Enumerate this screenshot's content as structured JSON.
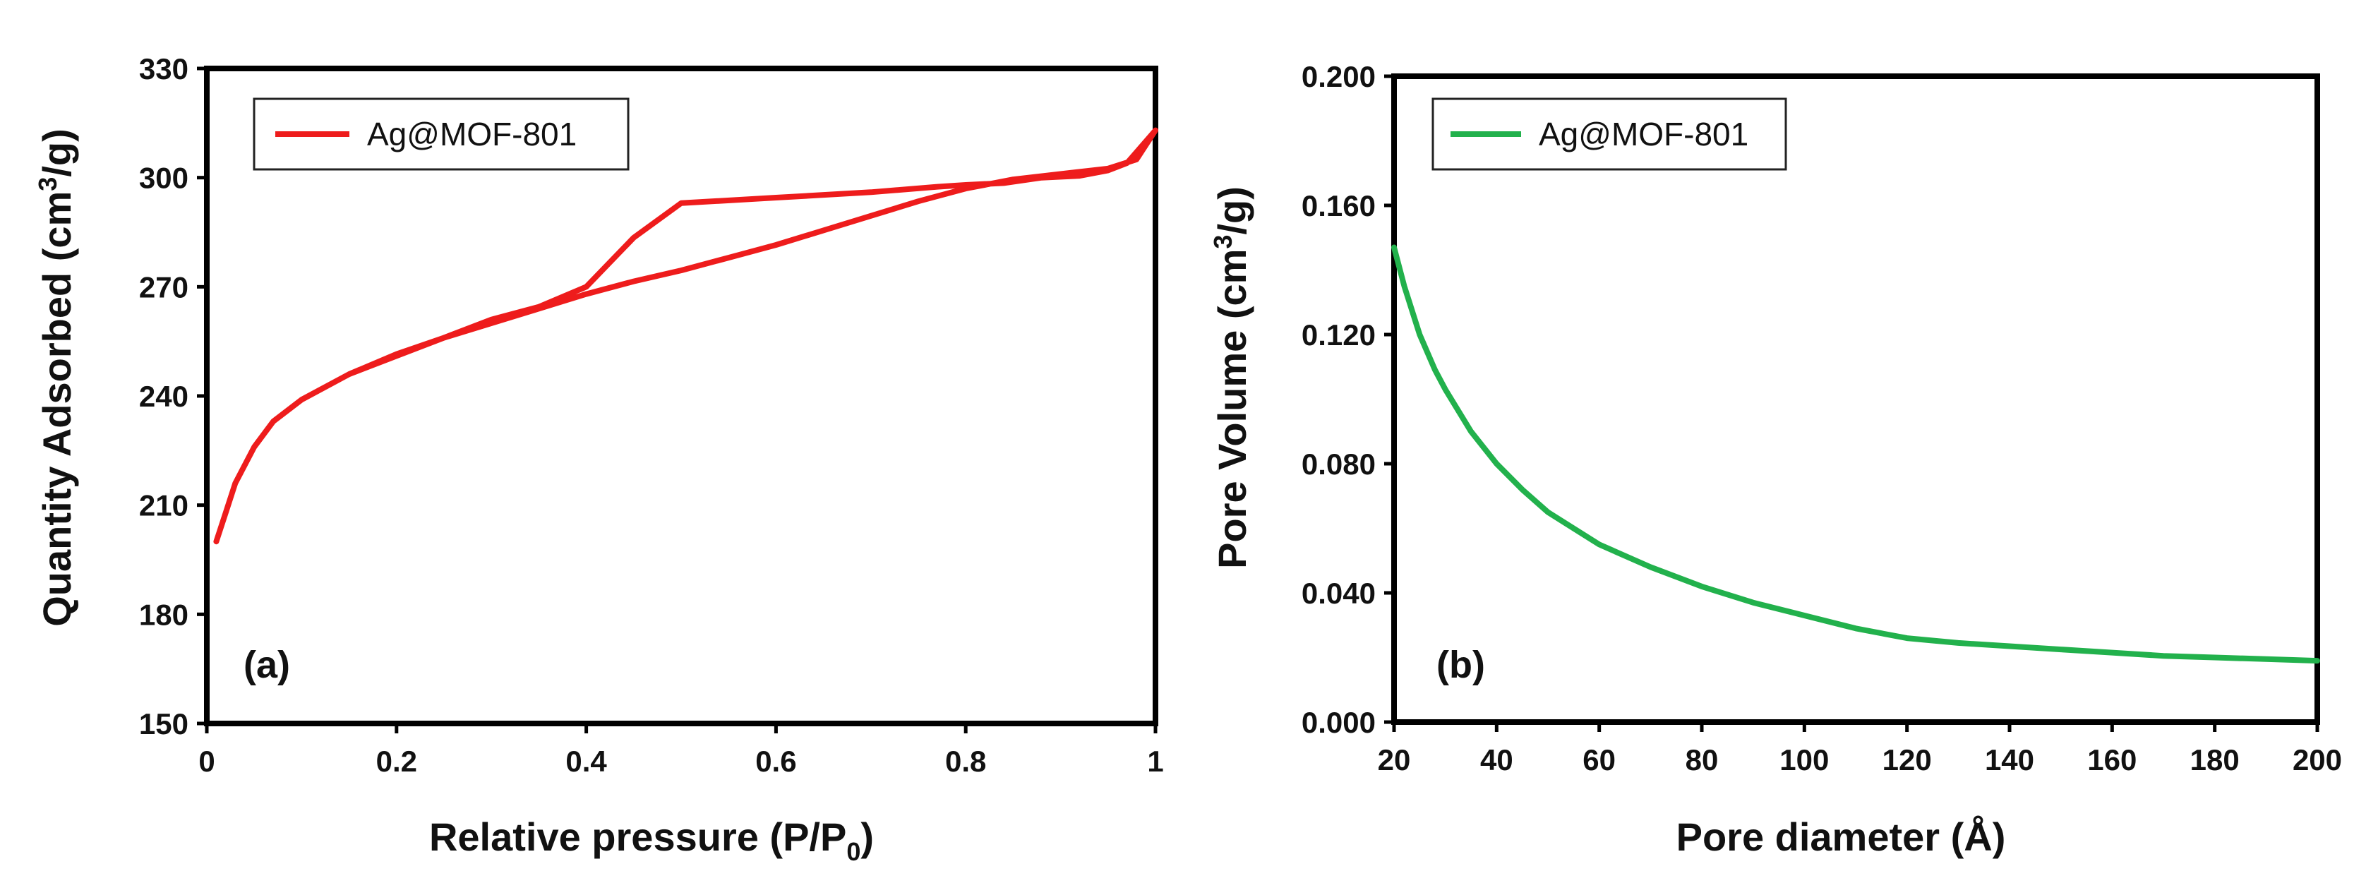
{
  "chart_data": [
    {
      "type": "line",
      "panel_label": "(a)",
      "xlabel": "Relative pressure (P/P",
      "xlabel_sub": "0",
      "xlabel_end": ")",
      "ylabel": "Quantity Adsorbed (cm",
      "ylabel_sup": "3",
      "ylabel_end": "/g)",
      "xlim": [
        0,
        1
      ],
      "ylim": [
        150,
        330
      ],
      "xticks": [
        0,
        0.2,
        0.4,
        0.6,
        0.8,
        1
      ],
      "xtick_labels": [
        "0",
        "0.2",
        "0.4",
        "0.6",
        "0.8",
        "1"
      ],
      "yticks": [
        150,
        180,
        210,
        240,
        270,
        300,
        330
      ],
      "ytick_labels": [
        "150",
        "180",
        "210",
        "240",
        "270",
        "300",
        "330"
      ],
      "legend": [
        "Ag@MOF-801"
      ],
      "series": [
        {
          "name": "Ag@MOF-801",
          "color": "#ee1c1c",
          "x": [
            0.01,
            0.02,
            0.03,
            0.05,
            0.07,
            0.1,
            0.15,
            0.2,
            0.25,
            0.3,
            0.35,
            0.4,
            0.45,
            0.5,
            0.55,
            0.6,
            0.65,
            0.7,
            0.75,
            0.8,
            0.85,
            0.9,
            0.95,
            0.98,
            1.0,
            0.97,
            0.95,
            0.92,
            0.88,
            0.84,
            0.8,
            0.77,
            0.7,
            0.6,
            0.5,
            0.45,
            0.4,
            0.35,
            0.3,
            0.25,
            0.2,
            0.15
          ],
          "y": [
            200,
            208,
            216,
            226,
            233,
            239,
            246,
            251,
            256,
            260,
            264,
            268,
            271.5,
            274.5,
            278,
            281.5,
            285.5,
            289.5,
            293.5,
            297,
            299.5,
            301,
            302.5,
            305,
            313,
            304,
            302,
            300.5,
            300,
            298.5,
            298,
            297.5,
            296,
            294.5,
            293,
            283.5,
            270,
            264.5,
            261,
            256,
            251.5,
            246
          ]
        }
      ]
    },
    {
      "type": "line",
      "panel_label": "(b)",
      "xlabel": "Pore diameter (Å)",
      "ylabel": "Pore Volume (cm",
      "ylabel_sup": "3",
      "ylabel_end": "/g)",
      "xlim": [
        20,
        200
      ],
      "ylim": [
        0,
        0.2
      ],
      "xticks": [
        20,
        40,
        60,
        80,
        100,
        120,
        140,
        160,
        180,
        200
      ],
      "xtick_labels": [
        "20",
        "40",
        "60",
        "80",
        "100",
        "120",
        "140",
        "160",
        "180",
        "200"
      ],
      "yticks": [
        0,
        0.04,
        0.08,
        0.12,
        0.16,
        0.2
      ],
      "ytick_labels": [
        "0.000",
        "0.040",
        "0.080",
        "0.120",
        "0.160",
        "0.200"
      ],
      "legend": [
        "Ag@MOF-801"
      ],
      "series": [
        {
          "name": "Ag@MOF-801",
          "color": "#22b14c",
          "x": [
            20,
            22,
            25,
            28,
            30,
            35,
            40,
            45,
            50,
            55,
            60,
            70,
            80,
            90,
            100,
            110,
            120,
            130,
            140,
            150,
            160,
            170,
            180,
            190,
            200
          ],
          "y": [
            0.147,
            0.135,
            0.12,
            0.109,
            0.103,
            0.09,
            0.08,
            0.072,
            0.065,
            0.06,
            0.055,
            0.048,
            0.042,
            0.037,
            0.033,
            0.029,
            0.026,
            0.0245,
            0.0235,
            0.0225,
            0.0215,
            0.0205,
            0.02,
            0.0195,
            0.019
          ]
        }
      ]
    }
  ]
}
